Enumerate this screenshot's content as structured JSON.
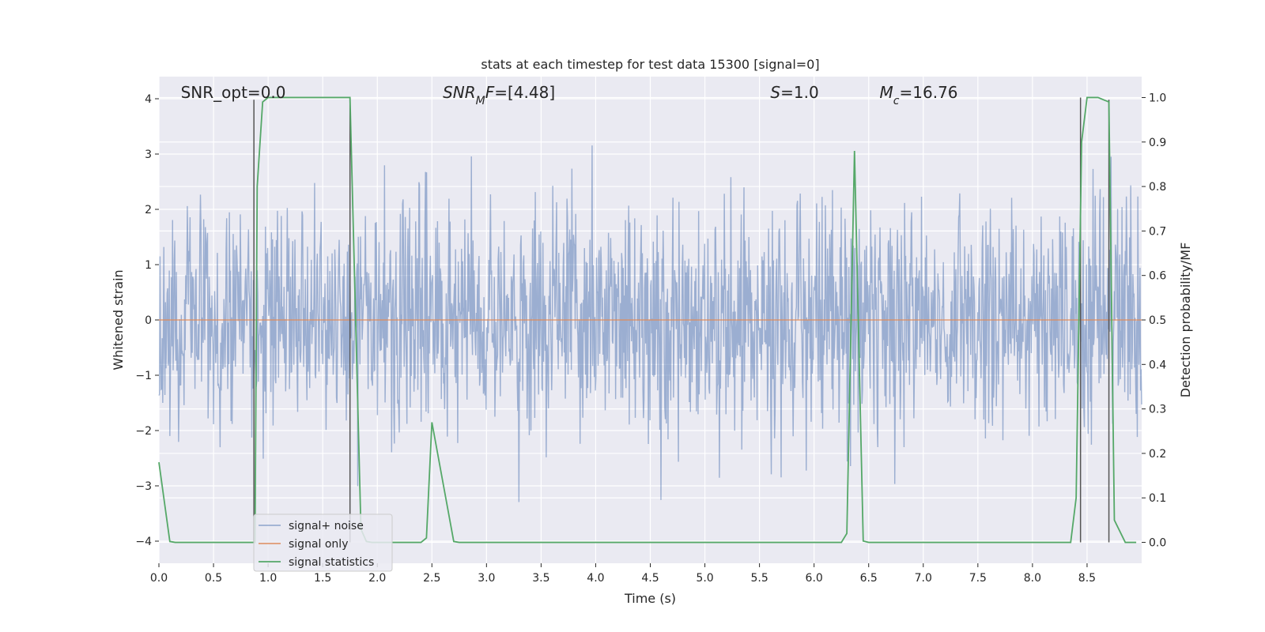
{
  "chart_data": {
    "type": "line",
    "title": "stats at each timestep for test data 15300 [signal=0]",
    "xlabel": "Time (s)",
    "ylabel": "Whitened strain",
    "y2label": "Detection probability/MF",
    "xlim": [
      0.0,
      9.0
    ],
    "ylim": [
      -4.4,
      4.4
    ],
    "y2lim": [
      -0.047,
      1.047
    ],
    "xticks": [
      0.0,
      0.5,
      1.0,
      1.5,
      2.0,
      2.5,
      3.0,
      3.5,
      4.0,
      4.5,
      5.0,
      5.5,
      6.0,
      6.5,
      7.0,
      7.5,
      8.0,
      8.5
    ],
    "xtick_labels": [
      "0.0",
      "0.5",
      "1.0",
      "1.5",
      "2.0",
      "2.5",
      "3.0",
      "3.5",
      "4.0",
      "4.5",
      "5.0",
      "5.5",
      "6.0",
      "6.5",
      "7.0",
      "7.5",
      "8.0",
      "8.5"
    ],
    "yticks": [
      4,
      3,
      2,
      1,
      0,
      -1,
      -2,
      -3,
      -4
    ],
    "ytick_labels": [
      "4",
      "3",
      "2",
      "1",
      "0",
      "−1",
      "−2",
      "−3",
      "−4"
    ],
    "y2ticks": [
      1.0,
      0.9,
      0.8,
      0.7,
      0.6,
      0.5,
      0.4,
      0.3,
      0.2,
      0.1,
      0.0
    ],
    "y2tick_labels": [
      "1.0",
      "0.9",
      "0.8",
      "0.7",
      "0.6",
      "0.5",
      "0.4",
      "0.3",
      "0.2",
      "0.1",
      "0.0"
    ],
    "grid": true,
    "legend_position": "lower-left",
    "annotations": [
      {
        "text": "SNR_opt=0.0",
        "x": 0.2
      },
      {
        "text_parts": [
          {
            "t": "SNR",
            "italic": true
          },
          {
            "t": "M",
            "italic": true,
            "sub": true
          },
          {
            "t": "F",
            "italic": true
          },
          {
            "t": "=[4.48]"
          }
        ],
        "x": 2.6
      },
      {
        "text_parts": [
          {
            "t": "S",
            "italic": true
          },
          {
            "t": "=1.0"
          }
        ],
        "x": 5.6
      },
      {
        "text_parts": [
          {
            "t": "M",
            "italic": true
          },
          {
            "t": "c",
            "italic": true,
            "sub": true
          },
          {
            "t": "=16.76"
          }
        ],
        "x": 6.6
      }
    ],
    "series": [
      {
        "name": "signal+ noise",
        "color": "#4c72b0",
        "opacity": 0.5,
        "noise_sigma": 1.0,
        "sample_count": 1800,
        "x_range": [
          0.0,
          9.0
        ]
      },
      {
        "name": "signal only",
        "color": "#dd8452",
        "values_constant": 0.0
      },
      {
        "name": "signal statistics",
        "color": "#55a868",
        "axis": "right",
        "x": [
          0.0,
          0.1,
          0.15,
          0.88,
          0.9,
          0.95,
          1.0,
          1.75,
          1.85,
          1.9,
          1.95,
          2.0,
          2.4,
          2.45,
          2.5,
          2.7,
          2.75,
          6.25,
          6.3,
          6.37,
          6.45,
          6.5,
          8.35,
          8.4,
          8.45,
          8.5,
          8.6,
          8.7,
          8.75,
          8.85,
          8.95
        ],
        "y": [
          0.18,
          0.002,
          0.0,
          0.0,
          0.8,
          0.99,
          1.0,
          1.0,
          0.03,
          0.002,
          0.0,
          0.0,
          0.0,
          0.01,
          0.27,
          0.002,
          0.0,
          0.0,
          0.02,
          0.88,
          0.003,
          0.0,
          0.0,
          0.1,
          0.9,
          1.0,
          1.0,
          0.99,
          0.05,
          0.0,
          0.0
        ]
      }
    ],
    "vertical_lines": [
      {
        "x": 0.87,
        "y2_top": 0.995
      },
      {
        "x": 1.75,
        "y2_top": 1.0
      },
      {
        "x": 8.44,
        "y2_top": 1.0
      },
      {
        "x": 8.7,
        "y2_top": 0.995
      }
    ],
    "vline_color": "#555555"
  }
}
